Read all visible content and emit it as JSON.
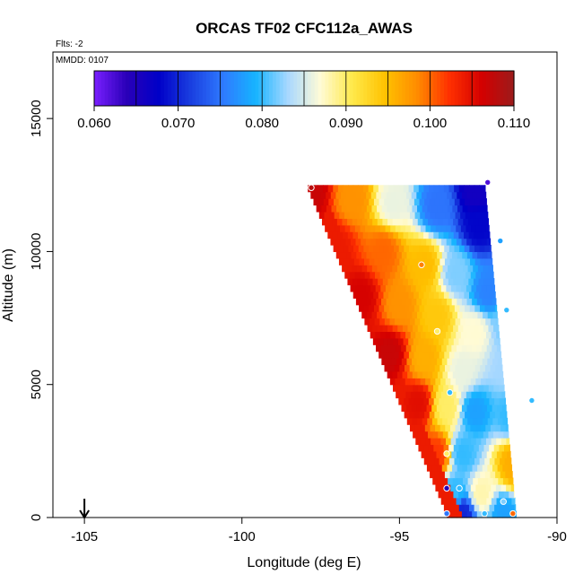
{
  "chart_data": {
    "type": "heatmap",
    "title": "ORCAS TF02 CFC112a_AWAS",
    "flts_label": "Flts: -2",
    "mmdd_label": "MMDD: 0107",
    "xlabel": "Longitude (deg E)",
    "ylabel": "Altitude (m)",
    "xlim": [
      -106,
      -90
    ],
    "ylim": [
      0,
      17500
    ],
    "x_ticks": [
      -105,
      -100,
      -95,
      -90
    ],
    "x_tick_labels": [
      "-105",
      "-100",
      "-95",
      "-90"
    ],
    "y_ticks": [
      0,
      5000,
      10000,
      15000
    ],
    "y_tick_labels": [
      "0",
      "5000",
      "10000",
      "15000"
    ],
    "colorbar": {
      "min": 0.06,
      "max": 0.11,
      "ticks": [
        0.06,
        0.07,
        0.08,
        0.09,
        0.1,
        0.11
      ],
      "tick_labels": [
        "0.060",
        "0.070",
        "0.080",
        "0.090",
        "0.100",
        "0.110"
      ],
      "colors": [
        "#7a1fff",
        "#2a00b8",
        "#0000c8",
        "#1a3fe0",
        "#2f7aff",
        "#16b4ff",
        "#a8d8ff",
        "#fffbd6",
        "#ffe94a",
        "#ffc200",
        "#ff8c00",
        "#ff3000",
        "#d40000",
        "#9c1c1c"
      ]
    },
    "arrow_longitude": -105,
    "field": {
      "lon_west_bottom": -93.5,
      "lon_west_top": -98.0,
      "lon_east_bottom": -91.3,
      "lon_east_top": -92.3,
      "alt_top": 12500,
      "control_points": [
        {
          "lon": -97.8,
          "alt": 12300,
          "value": 0.107
        },
        {
          "lon": -96.5,
          "alt": 12000,
          "value": 0.098
        },
        {
          "lon": -95.2,
          "alt": 11800,
          "value": 0.086
        },
        {
          "lon": -93.8,
          "alt": 11700,
          "value": 0.075
        },
        {
          "lon": -92.6,
          "alt": 12300,
          "value": 0.066
        },
        {
          "lon": -92.5,
          "alt": 11000,
          "value": 0.068
        },
        {
          "lon": -97.0,
          "alt": 10200,
          "value": 0.104
        },
        {
          "lon": -95.5,
          "alt": 10000,
          "value": 0.1
        },
        {
          "lon": -94.2,
          "alt": 9500,
          "value": 0.095
        },
        {
          "lon": -93.2,
          "alt": 9200,
          "value": 0.082
        },
        {
          "lon": -92.2,
          "alt": 8500,
          "value": 0.076
        },
        {
          "lon": -96.2,
          "alt": 8300,
          "value": 0.106
        },
        {
          "lon": -95.0,
          "alt": 8000,
          "value": 0.098
        },
        {
          "lon": -93.8,
          "alt": 7600,
          "value": 0.094
        },
        {
          "lon": -92.6,
          "alt": 7000,
          "value": 0.087
        },
        {
          "lon": -91.6,
          "alt": 7200,
          "value": 0.082
        },
        {
          "lon": -95.3,
          "alt": 6200,
          "value": 0.107
        },
        {
          "lon": -94.2,
          "alt": 6000,
          "value": 0.096
        },
        {
          "lon": -93.0,
          "alt": 5500,
          "value": 0.086
        },
        {
          "lon": -91.6,
          "alt": 5700,
          "value": 0.083
        },
        {
          "lon": -94.4,
          "alt": 4300,
          "value": 0.105
        },
        {
          "lon": -93.5,
          "alt": 4200,
          "value": 0.09
        },
        {
          "lon": -92.6,
          "alt": 4000,
          "value": 0.078
        },
        {
          "lon": -91.5,
          "alt": 3800,
          "value": 0.08
        },
        {
          "lon": -93.8,
          "alt": 2400,
          "value": 0.102
        },
        {
          "lon": -93.0,
          "alt": 2400,
          "value": 0.08
        },
        {
          "lon": -91.4,
          "alt": 2000,
          "value": 0.096
        },
        {
          "lon": -91.0,
          "alt": 2200,
          "value": 0.1
        },
        {
          "lon": -93.3,
          "alt": 900,
          "value": 0.08
        },
        {
          "lon": -92.4,
          "alt": 900,
          "value": 0.088
        },
        {
          "lon": -93.0,
          "alt": 150,
          "value": 0.07
        },
        {
          "lon": -91.7,
          "alt": 150,
          "value": 0.078
        }
      ]
    },
    "sample_points": [
      {
        "lon": -92.2,
        "alt": 12600,
        "value": 0.062
      },
      {
        "lon": -91.8,
        "alt": 10400,
        "value": 0.078
      },
      {
        "lon": -94.3,
        "alt": 9500,
        "value": 0.099
      },
      {
        "lon": -91.6,
        "alt": 7800,
        "value": 0.08
      },
      {
        "lon": -93.8,
        "alt": 7000,
        "value": 0.09
      },
      {
        "lon": -93.4,
        "alt": 4700,
        "value": 0.08
      },
      {
        "lon": -90.8,
        "alt": 4400,
        "value": 0.08
      },
      {
        "lon": -93.5,
        "alt": 2400,
        "value": 0.09
      },
      {
        "lon": -93.5,
        "alt": 1100,
        "value": 0.064
      },
      {
        "lon": -93.1,
        "alt": 1100,
        "value": 0.08
      },
      {
        "lon": -91.7,
        "alt": 600,
        "value": 0.082
      },
      {
        "lon": -93.5,
        "alt": 150,
        "value": 0.075
      },
      {
        "lon": -92.3,
        "alt": 150,
        "value": 0.08
      },
      {
        "lon": -91.4,
        "alt": 150,
        "value": 0.1
      },
      {
        "lon": -97.8,
        "alt": 12400,
        "value": 0.108
      }
    ]
  }
}
